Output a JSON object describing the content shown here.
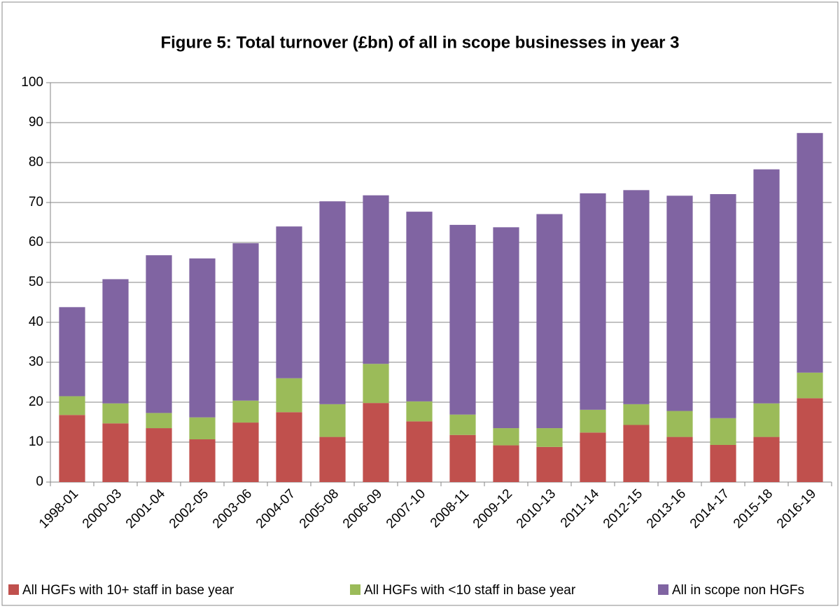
{
  "chart_data": {
    "type": "stacked_bar",
    "title": "Figure 5: Total turnover (£bn) of all in scope businesses in year 3",
    "categories": [
      "1998-01",
      "2000-03",
      "2001-04",
      "2002-05",
      "2003-06",
      "2004-07",
      "2005-08",
      "2006-09",
      "2007-10",
      "2008-11",
      "2009-12",
      "2010-13",
      "2011-14",
      "2012-15",
      "2013-16",
      "2014-17",
      "2015-18",
      "2016-19"
    ],
    "series": [
      {
        "name": "All HGFs with 10+ staff in base year",
        "color": "#c0504d",
        "values": [
          16.8,
          14.7,
          13.5,
          10.7,
          14.9,
          17.5,
          11.3,
          19.8,
          15.2,
          11.8,
          9.2,
          8.8,
          12.4,
          14.3,
          11.3,
          9.3,
          11.3,
          21.0
        ]
      },
      {
        "name": "All HGFs with <10 staff in base year",
        "color": "#9bbb59",
        "values": [
          4.7,
          5.0,
          3.8,
          5.5,
          5.5,
          8.5,
          8.2,
          9.8,
          5.0,
          5.1,
          4.3,
          4.7,
          5.7,
          5.2,
          6.5,
          6.7,
          8.4,
          6.4
        ]
      },
      {
        "name": "All in scope non HGFs",
        "color": "#8064a2",
        "values": [
          22.3,
          31.1,
          39.5,
          39.8,
          39.4,
          38.0,
          50.8,
          42.2,
          47.5,
          47.5,
          50.3,
          53.6,
          54.2,
          53.6,
          53.9,
          56.1,
          58.6,
          60.0
        ]
      }
    ],
    "ylim": [
      0,
      100
    ],
    "yticks": [
      0,
      10,
      20,
      30,
      40,
      50,
      60,
      70,
      80,
      90,
      100
    ],
    "grid": true,
    "legend": "bottom"
  }
}
